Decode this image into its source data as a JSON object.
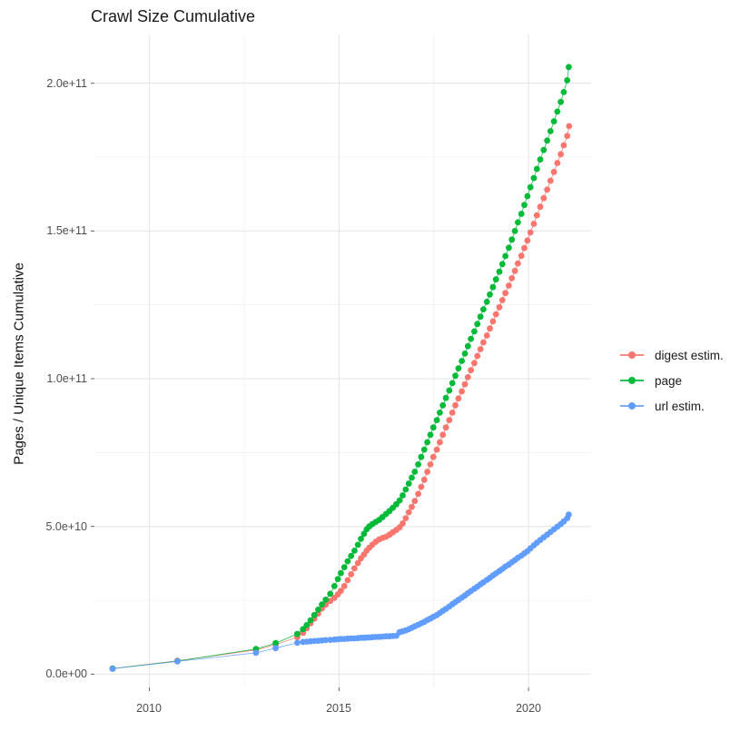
{
  "title": "Crawl Size Cumulative",
  "chart_data": {
    "type": "line",
    "title": "Crawl Size Cumulative",
    "xlabel": "",
    "ylabel": "Pages / Unique Items Cumulative",
    "grid": true,
    "legend_position": "right",
    "xlim": [
      2008.55,
      2021.65
    ],
    "ylim_e10": [
      -0.45,
      21.65
    ],
    "y_unit": "1e10",
    "x_ticks": [
      {
        "value": 2010,
        "label": "2010"
      },
      {
        "value": 2015,
        "label": "2015"
      },
      {
        "value": 2020,
        "label": "2020"
      }
    ],
    "x_minor": [
      2012.5,
      2017.5
    ],
    "y_ticks": [
      {
        "value": 0,
        "label": "0.0e+00"
      },
      {
        "value": 5,
        "label": "5.0e+10"
      },
      {
        "value": 10,
        "label": "1.0e+11"
      },
      {
        "value": 15,
        "label": "1.5e+11"
      },
      {
        "value": 20,
        "label": "2.0e+11"
      }
    ],
    "y_minor": [
      2.5,
      7.5,
      12.5,
      17.5
    ],
    "series": [
      {
        "name": "digest estim.",
        "color": "#F8766D",
        "points": [
          [
            2009.03,
            0.19
          ],
          [
            2010.74,
            0.45
          ],
          [
            2012.81,
            0.82
          ],
          [
            2013.33,
            1.0
          ],
          [
            2013.9,
            1.25
          ],
          [
            2014.05,
            1.4
          ],
          [
            2014.15,
            1.55
          ],
          [
            2014.25,
            1.72
          ],
          [
            2014.35,
            1.88
          ],
          [
            2014.45,
            2.05
          ],
          [
            2014.55,
            2.22
          ],
          [
            2014.65,
            2.35
          ],
          [
            2014.77,
            2.48
          ],
          [
            2014.88,
            2.58
          ],
          [
            2014.97,
            2.7
          ],
          [
            2015.05,
            2.82
          ],
          [
            2015.14,
            2.98
          ],
          [
            2015.23,
            3.18
          ],
          [
            2015.32,
            3.38
          ],
          [
            2015.41,
            3.58
          ],
          [
            2015.5,
            3.76
          ],
          [
            2015.58,
            3.92
          ],
          [
            2015.66,
            4.05
          ],
          [
            2015.73,
            4.18
          ],
          [
            2015.8,
            4.28
          ],
          [
            2015.88,
            4.38
          ],
          [
            2015.97,
            4.48
          ],
          [
            2016.06,
            4.56
          ],
          [
            2016.15,
            4.61
          ],
          [
            2016.24,
            4.65
          ],
          [
            2016.33,
            4.72
          ],
          [
            2016.42,
            4.8
          ],
          [
            2016.51,
            4.88
          ],
          [
            2016.6,
            4.97
          ],
          [
            2016.68,
            5.1
          ],
          [
            2016.76,
            5.28
          ],
          [
            2016.84,
            5.48
          ],
          [
            2016.92,
            5.66
          ],
          [
            2017.0,
            5.86
          ],
          [
            2017.09,
            6.1
          ],
          [
            2017.17,
            6.34
          ],
          [
            2017.25,
            6.58
          ],
          [
            2017.33,
            6.85
          ],
          [
            2017.41,
            7.1
          ],
          [
            2017.49,
            7.35
          ],
          [
            2017.58,
            7.6
          ],
          [
            2017.66,
            7.85
          ],
          [
            2017.74,
            8.1
          ],
          [
            2017.82,
            8.35
          ],
          [
            2017.91,
            8.6
          ],
          [
            2017.99,
            8.85
          ],
          [
            2018.07,
            9.1
          ],
          [
            2018.15,
            9.33
          ],
          [
            2018.24,
            9.57
          ],
          [
            2018.32,
            9.81
          ],
          [
            2018.4,
            10.05
          ],
          [
            2018.48,
            10.29
          ],
          [
            2018.57,
            10.53
          ],
          [
            2018.65,
            10.77
          ],
          [
            2018.73,
            11.0
          ],
          [
            2018.81,
            11.23
          ],
          [
            2018.9,
            11.46
          ],
          [
            2018.98,
            11.7
          ],
          [
            2019.06,
            11.94
          ],
          [
            2019.14,
            12.18
          ],
          [
            2019.23,
            12.42
          ],
          [
            2019.31,
            12.66
          ],
          [
            2019.39,
            12.9
          ],
          [
            2019.48,
            13.15
          ],
          [
            2019.56,
            13.4
          ],
          [
            2019.64,
            13.65
          ],
          [
            2019.72,
            13.9
          ],
          [
            2019.81,
            14.16
          ],
          [
            2019.89,
            14.42
          ],
          [
            2019.97,
            14.68
          ],
          [
            2020.05,
            14.95
          ],
          [
            2020.14,
            15.24
          ],
          [
            2020.22,
            15.53
          ],
          [
            2020.31,
            15.82
          ],
          [
            2020.4,
            16.11
          ],
          [
            2020.49,
            16.4
          ],
          [
            2020.58,
            16.7
          ],
          [
            2020.67,
            17.0
          ],
          [
            2020.76,
            17.3
          ],
          [
            2020.85,
            17.6
          ],
          [
            2020.93,
            17.9
          ],
          [
            2021.02,
            18.22
          ],
          [
            2021.07,
            18.55
          ]
        ]
      },
      {
        "name": "page",
        "color": "#00BA38",
        "points": [
          [
            2009.03,
            0.19
          ],
          [
            2010.74,
            0.44
          ],
          [
            2012.81,
            0.85
          ],
          [
            2013.33,
            1.05
          ],
          [
            2013.9,
            1.36
          ],
          [
            2014.05,
            1.52
          ],
          [
            2014.15,
            1.66
          ],
          [
            2014.25,
            1.82
          ],
          [
            2014.35,
            2.0
          ],
          [
            2014.45,
            2.18
          ],
          [
            2014.55,
            2.36
          ],
          [
            2014.65,
            2.52
          ],
          [
            2014.77,
            2.72
          ],
          [
            2014.88,
            2.98
          ],
          [
            2014.97,
            3.22
          ],
          [
            2015.05,
            3.42
          ],
          [
            2015.14,
            3.62
          ],
          [
            2015.23,
            3.82
          ],
          [
            2015.32,
            4.0
          ],
          [
            2015.41,
            4.18
          ],
          [
            2015.5,
            4.38
          ],
          [
            2015.58,
            4.58
          ],
          [
            2015.66,
            4.75
          ],
          [
            2015.73,
            4.9
          ],
          [
            2015.8,
            5.0
          ],
          [
            2015.88,
            5.08
          ],
          [
            2015.97,
            5.15
          ],
          [
            2016.06,
            5.22
          ],
          [
            2016.15,
            5.32
          ],
          [
            2016.24,
            5.42
          ],
          [
            2016.33,
            5.52
          ],
          [
            2016.42,
            5.63
          ],
          [
            2016.51,
            5.75
          ],
          [
            2016.6,
            5.88
          ],
          [
            2016.68,
            6.05
          ],
          [
            2016.76,
            6.25
          ],
          [
            2016.84,
            6.45
          ],
          [
            2016.92,
            6.65
          ],
          [
            2017.0,
            6.85
          ],
          [
            2017.09,
            7.1
          ],
          [
            2017.17,
            7.35
          ],
          [
            2017.25,
            7.6
          ],
          [
            2017.33,
            7.85
          ],
          [
            2017.41,
            8.1
          ],
          [
            2017.49,
            8.35
          ],
          [
            2017.58,
            8.6
          ],
          [
            2017.66,
            8.85
          ],
          [
            2017.74,
            9.1
          ],
          [
            2017.82,
            9.35
          ],
          [
            2017.91,
            9.6
          ],
          [
            2017.99,
            9.85
          ],
          [
            2018.07,
            10.1
          ],
          [
            2018.15,
            10.35
          ],
          [
            2018.24,
            10.6
          ],
          [
            2018.32,
            10.85
          ],
          [
            2018.4,
            11.1
          ],
          [
            2018.48,
            11.35
          ],
          [
            2018.57,
            11.6
          ],
          [
            2018.65,
            11.85
          ],
          [
            2018.73,
            12.1
          ],
          [
            2018.81,
            12.35
          ],
          [
            2018.9,
            12.6
          ],
          [
            2018.98,
            12.85
          ],
          [
            2019.06,
            13.1
          ],
          [
            2019.14,
            13.36
          ],
          [
            2019.23,
            13.62
          ],
          [
            2019.31,
            13.88
          ],
          [
            2019.39,
            14.15
          ],
          [
            2019.48,
            14.43
          ],
          [
            2019.56,
            14.71
          ],
          [
            2019.64,
            15.0
          ],
          [
            2019.72,
            15.29
          ],
          [
            2019.81,
            15.58
          ],
          [
            2019.89,
            15.88
          ],
          [
            2019.97,
            16.18
          ],
          [
            2020.05,
            16.48
          ],
          [
            2020.14,
            16.79
          ],
          [
            2020.22,
            17.1
          ],
          [
            2020.31,
            17.42
          ],
          [
            2020.4,
            17.74
          ],
          [
            2020.49,
            18.06
          ],
          [
            2020.58,
            18.38
          ],
          [
            2020.67,
            18.71
          ],
          [
            2020.76,
            19.04
          ],
          [
            2020.85,
            19.37
          ],
          [
            2020.93,
            19.7
          ],
          [
            2021.02,
            20.1
          ],
          [
            2021.06,
            20.55
          ]
        ]
      },
      {
        "name": "url estim.",
        "color": "#619CFF",
        "points": [
          [
            2009.03,
            0.18
          ],
          [
            2010.74,
            0.43
          ],
          [
            2012.81,
            0.72
          ],
          [
            2013.33,
            0.88
          ],
          [
            2013.9,
            1.06
          ],
          [
            2014.05,
            1.09
          ],
          [
            2014.15,
            1.1
          ],
          [
            2014.25,
            1.11
          ],
          [
            2014.35,
            1.12
          ],
          [
            2014.45,
            1.13
          ],
          [
            2014.55,
            1.14
          ],
          [
            2014.65,
            1.15
          ],
          [
            2014.77,
            1.16
          ],
          [
            2014.88,
            1.17
          ],
          [
            2014.97,
            1.18
          ],
          [
            2015.05,
            1.19
          ],
          [
            2015.14,
            1.19
          ],
          [
            2015.23,
            1.2
          ],
          [
            2015.32,
            1.21
          ],
          [
            2015.41,
            1.21
          ],
          [
            2015.5,
            1.22
          ],
          [
            2015.58,
            1.23
          ],
          [
            2015.66,
            1.23
          ],
          [
            2015.73,
            1.24
          ],
          [
            2015.8,
            1.24
          ],
          [
            2015.88,
            1.25
          ],
          [
            2015.97,
            1.26
          ],
          [
            2016.06,
            1.26
          ],
          [
            2016.15,
            1.27
          ],
          [
            2016.24,
            1.28
          ],
          [
            2016.33,
            1.28
          ],
          [
            2016.42,
            1.29
          ],
          [
            2016.51,
            1.3
          ],
          [
            2016.6,
            1.42
          ],
          [
            2016.68,
            1.45
          ],
          [
            2016.76,
            1.48
          ],
          [
            2016.84,
            1.52
          ],
          [
            2016.92,
            1.57
          ],
          [
            2017.0,
            1.62
          ],
          [
            2017.09,
            1.67
          ],
          [
            2017.17,
            1.72
          ],
          [
            2017.25,
            1.77
          ],
          [
            2017.33,
            1.83
          ],
          [
            2017.41,
            1.88
          ],
          [
            2017.49,
            1.94
          ],
          [
            2017.58,
            2.0
          ],
          [
            2017.66,
            2.07
          ],
          [
            2017.74,
            2.14
          ],
          [
            2017.82,
            2.21
          ],
          [
            2017.91,
            2.29
          ],
          [
            2017.99,
            2.37
          ],
          [
            2018.07,
            2.44
          ],
          [
            2018.15,
            2.51
          ],
          [
            2018.24,
            2.59
          ],
          [
            2018.32,
            2.66
          ],
          [
            2018.4,
            2.74
          ],
          [
            2018.48,
            2.81
          ],
          [
            2018.57,
            2.89
          ],
          [
            2018.65,
            2.96
          ],
          [
            2018.73,
            3.04
          ],
          [
            2018.81,
            3.11
          ],
          [
            2018.9,
            3.19
          ],
          [
            2018.98,
            3.26
          ],
          [
            2019.06,
            3.34
          ],
          [
            2019.14,
            3.41
          ],
          [
            2019.23,
            3.49
          ],
          [
            2019.31,
            3.56
          ],
          [
            2019.39,
            3.64
          ],
          [
            2019.48,
            3.71
          ],
          [
            2019.56,
            3.79
          ],
          [
            2019.64,
            3.86
          ],
          [
            2019.72,
            3.94
          ],
          [
            2019.81,
            4.01
          ],
          [
            2019.89,
            4.09
          ],
          [
            2019.97,
            4.16
          ],
          [
            2020.05,
            4.26
          ],
          [
            2020.14,
            4.36
          ],
          [
            2020.22,
            4.45
          ],
          [
            2020.31,
            4.54
          ],
          [
            2020.4,
            4.63
          ],
          [
            2020.49,
            4.72
          ],
          [
            2020.58,
            4.81
          ],
          [
            2020.67,
            4.9
          ],
          [
            2020.76,
            4.99
          ],
          [
            2020.85,
            5.08
          ],
          [
            2020.93,
            5.17
          ],
          [
            2021.02,
            5.28
          ],
          [
            2021.06,
            5.4
          ]
        ]
      }
    ],
    "colors": {
      "grid_major": "#e4e4e4",
      "grid_minor": "#f0f0f0",
      "tick_mark": "#666666",
      "text": "#4d4d4d"
    }
  }
}
